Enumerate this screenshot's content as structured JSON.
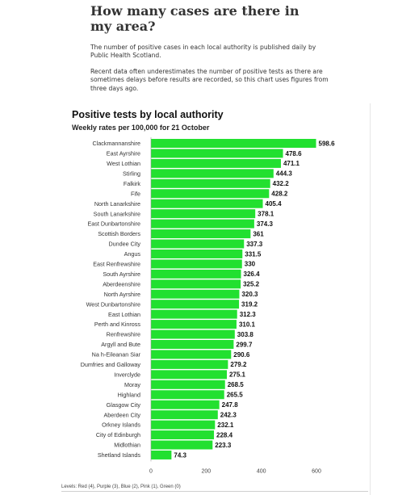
{
  "article": {
    "headline": "How many cases are there in my area?",
    "paragraph1": "The number of positive cases in each local authority is published daily by Public Health Scotland.",
    "paragraph2": "Recent data often underestimates the number of positive tests as there are sometimes delays before results are recorded, so this chart uses figures from three days ago."
  },
  "chart_data": {
    "type": "bar",
    "orientation": "horizontal",
    "title": "Positive tests by local authority",
    "subtitle": "Weekly rates per 100,000 for 21 October",
    "categories": [
      "Clackmannanshire",
      "East Ayrshire",
      "West Lothian",
      "Stirling",
      "Falkirk",
      "Fife",
      "North Lanarkshire",
      "South Lanarkshire",
      "East Dunbartonshire",
      "Scottish Borders",
      "Dundee City",
      "Angus",
      "East Renfrewshire",
      "South Ayrshire",
      "Aberdeenshire",
      "North Ayrshire",
      "West Dunbartonshire",
      "East Lothian",
      "Perth and Kinross",
      "Renfrewshire",
      "Argyll and Bute",
      "Na h-Eileanan Siar",
      "Dumfries and Galloway",
      "Inverclyde",
      "Moray",
      "Highland",
      "Glasgow City",
      "Aberdeen City",
      "Orkney Islands",
      "City of Edinburgh",
      "Midlothian",
      "Shetland Islands"
    ],
    "values": [
      598.6,
      478.6,
      471.1,
      444.3,
      432.2,
      428.2,
      405.4,
      378.1,
      374.3,
      361,
      337.3,
      331.5,
      330,
      326.4,
      325.2,
      320.3,
      319.2,
      312.3,
      310.1,
      303.8,
      299.7,
      290.6,
      279.2,
      275.1,
      268.5,
      265.5,
      247.8,
      242.3,
      232.1,
      228.4,
      223.3,
      74.3
    ],
    "value_labels": [
      "598.6",
      "478.6",
      "471.1",
      "444.3",
      "432.2",
      "428.2",
      "405.4",
      "378.1",
      "374.3",
      "361",
      "337.3",
      "331.5",
      "330",
      "326.4",
      "325.2",
      "320.3",
      "319.2",
      "312.3",
      "310.1",
      "303.8",
      "299.7",
      "290.6",
      "279.2",
      "275.1",
      "268.5",
      "265.5",
      "247.8",
      "242.3",
      "232.1",
      "228.4",
      "223.3",
      "74.3"
    ],
    "xlim": [
      0,
      600
    ],
    "xticks": [
      0,
      200,
      400,
      600
    ],
    "xtick_labels": [
      "0",
      "200",
      "400",
      "600"
    ],
    "bar_color": "#22e030",
    "legend_note": "Levels: Red (4), Purple (3), Blue (2), Pink (1), Green (0)"
  }
}
